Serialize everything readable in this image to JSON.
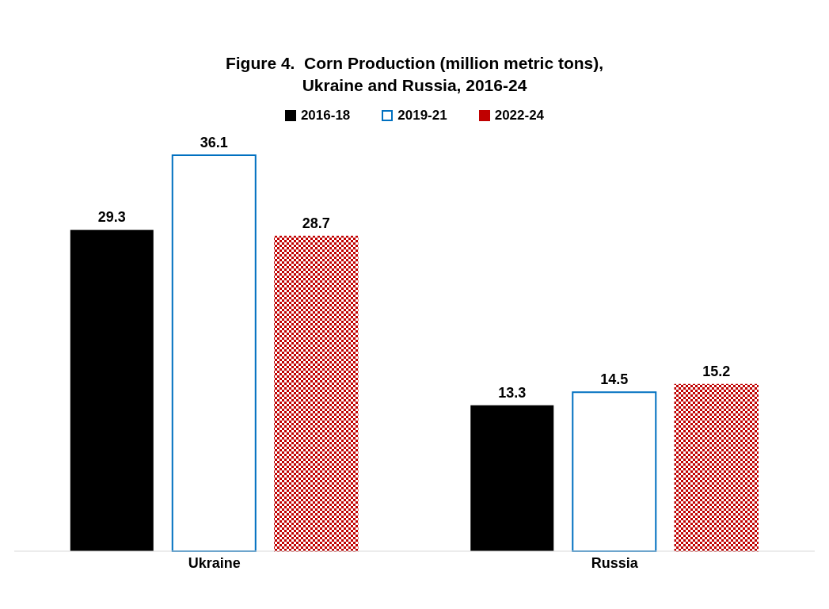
{
  "chart_data": {
    "type": "bar",
    "title": "Figure 4.  Corn Production (million metric tons),\nUkraine and Russia, 2016-24",
    "categories": [
      "Ukraine",
      "Russia"
    ],
    "series": [
      {
        "name": "2016-18",
        "color": "#000000",
        "values": [
          29.3,
          13.3
        ]
      },
      {
        "name": "2019-21",
        "color": "#0070c0",
        "values": [
          36.1,
          14.5
        ]
      },
      {
        "name": "2022-24",
        "color": "#c00000",
        "values": [
          28.7,
          15.2
        ]
      }
    ],
    "data_labels": true,
    "legend": "top",
    "grid": false
  }
}
